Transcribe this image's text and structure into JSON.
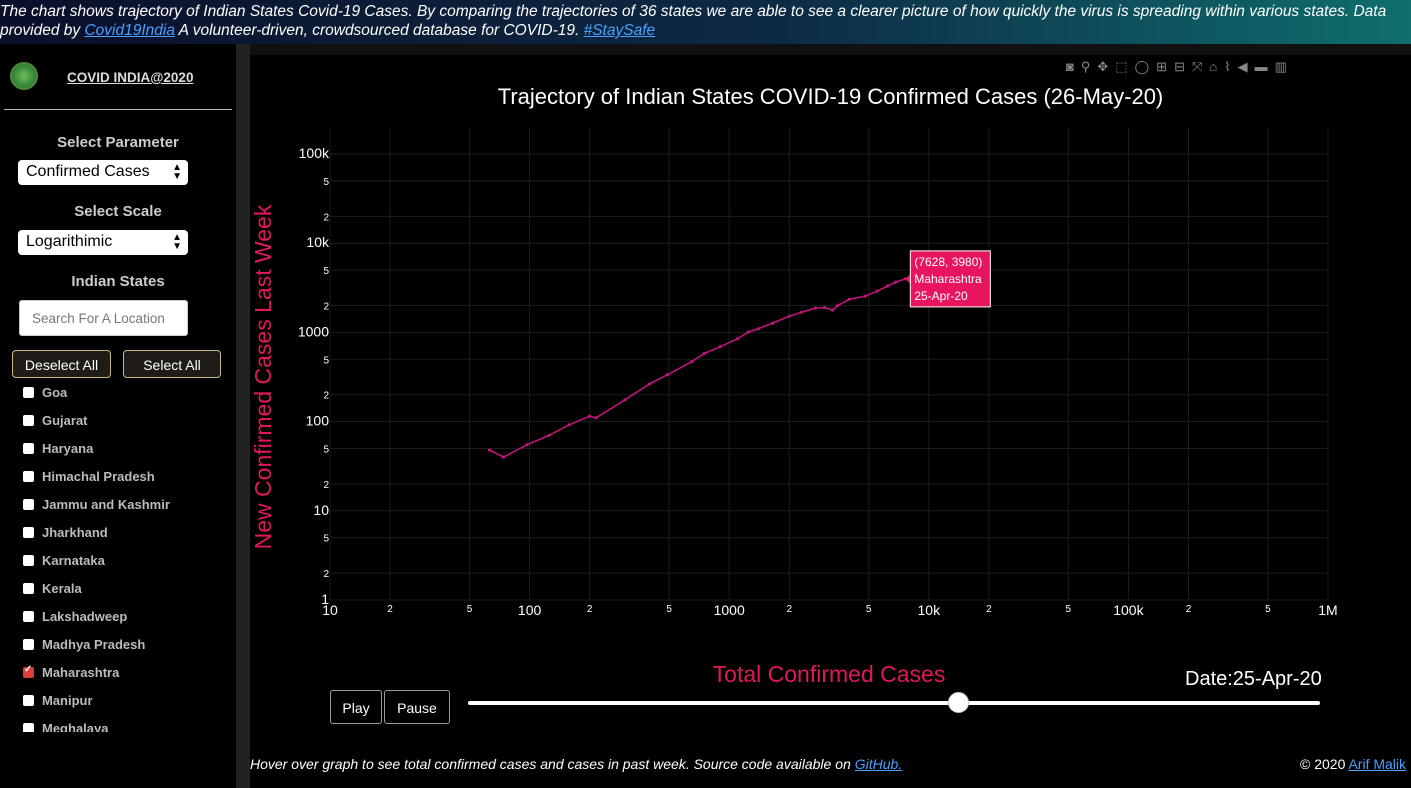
{
  "banner": {
    "line1": "The chart shows trajectory of Indian States Covid-19 Cases. By comparing the trajectories of 36 states we are able to see a clearer picture of how quickly the virus is spreading within various states. Data",
    "line2_prefix": "provided by ",
    "link1": "Covid19India",
    "line2_mid": " A volunteer-driven, crowdsourced database for COVID-19. ",
    "link2": "#StaySafe"
  },
  "sidebar": {
    "brand": "COVID INDIA@2020",
    "param_label": "Select Parameter",
    "param_value": "Confirmed Cases",
    "scale_label": "Select Scale",
    "scale_value": "Logarithimic",
    "states_label": "Indian States",
    "search_placeholder": "Search For A Location",
    "deselect_all": "Deselect All",
    "select_all": "Select All",
    "states": [
      {
        "name": "Goa",
        "checked": false
      },
      {
        "name": "Gujarat",
        "checked": false
      },
      {
        "name": "Haryana",
        "checked": false
      },
      {
        "name": "Himachal Pradesh",
        "checked": false
      },
      {
        "name": "Jammu and Kashmir",
        "checked": false
      },
      {
        "name": "Jharkhand",
        "checked": false
      },
      {
        "name": "Karnataka",
        "checked": false
      },
      {
        "name": "Kerala",
        "checked": false
      },
      {
        "name": "Lakshadweep",
        "checked": false
      },
      {
        "name": "Madhya Pradesh",
        "checked": false
      },
      {
        "name": "Maharashtra",
        "checked": true
      },
      {
        "name": "Manipur",
        "checked": false
      },
      {
        "name": "Meghalaya",
        "checked": false
      }
    ]
  },
  "toolbar": {
    "icons": [
      "camera-icon",
      "zoom-icon",
      "pan-icon",
      "box-select-icon",
      "lasso-icon",
      "zoom-in-icon",
      "zoom-out-icon",
      "autoscale-icon",
      "reset-axes-icon",
      "spike-lines-icon",
      "hover-closest-icon",
      "hover-compare-icon",
      "plotly-logo-icon"
    ]
  },
  "controls": {
    "play": "Play",
    "pause": "Pause",
    "date_label": "Date:25-Apr-20",
    "slider_value": 0.575
  },
  "footer": {
    "text": "Hover over graph to see total confirmed cases and cases in past week. Source code available on ",
    "link": "GitHub.",
    "copyright": "© 2020 ",
    "author": "Arif Malik"
  },
  "chart_data": {
    "type": "line",
    "title": "Trajectory of Indian States COVID-19 Confirmed Cases (26-May-20)",
    "xlabel": "Total Confirmed Cases",
    "ylabel": "New Confirmed Cases Last Week",
    "xscale": "log",
    "yscale": "log",
    "xlim": [
      10,
      1000000
    ],
    "ylim": [
      1,
      100000
    ],
    "x_ticks": [
      "10",
      "2",
      "5",
      "100",
      "2",
      "5",
      "1000",
      "2",
      "5",
      "10k",
      "2",
      "5",
      "100k",
      "2",
      "5",
      "1M"
    ],
    "y_ticks": [
      "1",
      "2",
      "5",
      "10",
      "2",
      "5",
      "100",
      "2",
      "5",
      "1000",
      "2",
      "5",
      "10k",
      "2",
      "5",
      "100k"
    ],
    "grid": true,
    "line_color": "#c0157a",
    "series": [
      {
        "name": "Maharashtra",
        "x": [
          63,
          74,
          97,
          125,
          158,
          200,
          215,
          300,
          400,
          490,
          650,
          750,
          900,
          1100,
          1250,
          1400,
          1650,
          2000,
          2300,
          2700,
          3000,
          3300,
          3500,
          4000,
          4800,
          5500,
          6200,
          6800,
          7628
        ],
        "y": [
          48,
          40,
          55,
          70,
          92,
          115,
          110,
          175,
          265,
          335,
          470,
          580,
          690,
          850,
          1010,
          1100,
          1270,
          1520,
          1680,
          1870,
          1900,
          1780,
          2000,
          2350,
          2550,
          2900,
          3300,
          3650,
          3980
        ]
      }
    ],
    "hover": {
      "x": 7628,
      "y": 3980,
      "label1": "(7628, 3980)",
      "label2": "Maharashtra",
      "label3": "25-Apr-20"
    }
  }
}
